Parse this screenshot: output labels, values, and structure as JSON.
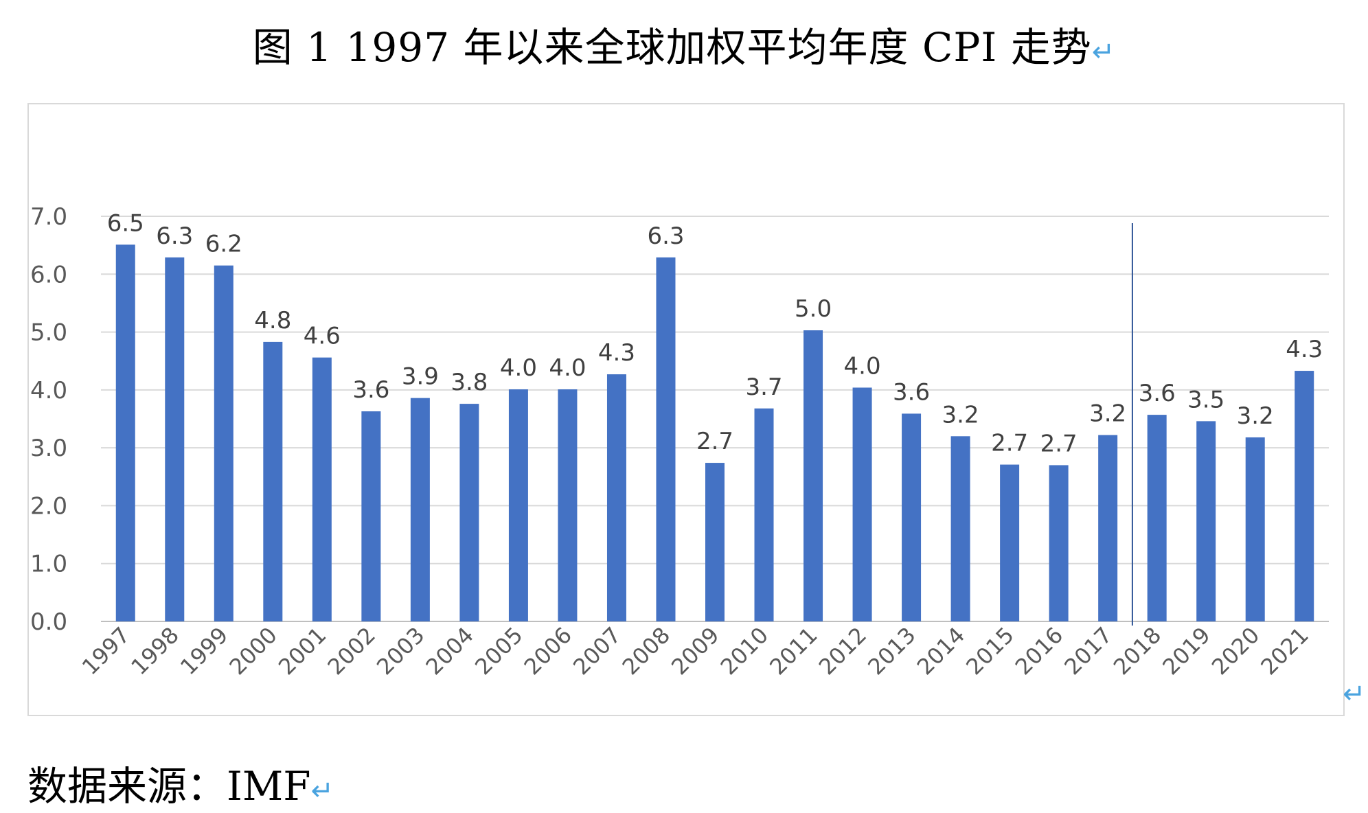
{
  "title": "图 1 1997 年以来全球加权平均年度 CPI 走势",
  "return_mark": "↵",
  "source": "数据来源：IMF",
  "chart_data": {
    "type": "bar",
    "title": "",
    "xlabel": "",
    "ylabel": "",
    "ylim": [
      0,
      7
    ],
    "yticks": [
      "0.0",
      "1.0",
      "2.0",
      "3.0",
      "4.0",
      "5.0",
      "6.0",
      "7.0"
    ],
    "grid": "horizontal",
    "bar_color": "#4472c4",
    "categories": [
      "1997",
      "1998",
      "1999",
      "2000",
      "2001",
      "2002",
      "2003",
      "2004",
      "2005",
      "2006",
      "2007",
      "2008",
      "2009",
      "2010",
      "2011",
      "2012",
      "2013",
      "2014",
      "2015",
      "2016",
      "2017",
      "2018",
      "2019",
      "2020",
      "2021"
    ],
    "values": [
      6.51,
      6.29,
      6.15,
      4.83,
      4.56,
      3.63,
      3.86,
      3.76,
      4.01,
      4.01,
      4.27,
      6.29,
      2.74,
      3.68,
      5.03,
      4.04,
      3.59,
      3.2,
      2.71,
      2.7,
      3.22,
      3.57,
      3.46,
      3.18,
      4.33
    ],
    "data_labels": [
      "6.5",
      "6.3",
      "6.2",
      "4.8",
      "4.6",
      "3.6",
      "3.9",
      "3.8",
      "4.0",
      "4.0",
      "4.3",
      "6.3",
      "2.7",
      "3.7",
      "5.0",
      "4.0",
      "3.6",
      "3.2",
      "2.7",
      "2.7",
      "3.2",
      "3.6",
      "3.5",
      "3.2",
      "4.3"
    ],
    "divider_after_category": "2017",
    "divider_color": "#2f5597"
  }
}
